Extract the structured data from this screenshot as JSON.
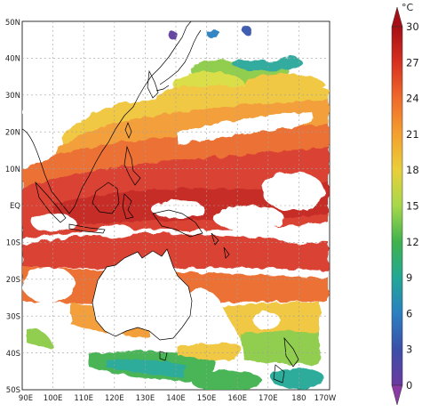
{
  "map": {
    "lat_labels": [
      "50N",
      "40N",
      "30N",
      "20N",
      "10N",
      "EQ",
      "10S",
      "20S",
      "30S",
      "40S",
      "50S"
    ],
    "lon_labels": [
      "90E",
      "100E",
      "110E",
      "120E",
      "130E",
      "140E",
      "150E",
      "160E",
      "170E",
      "180",
      "170W"
    ]
  },
  "colorbar": {
    "unit": "°C",
    "ticks": [
      "30",
      "27",
      "24",
      "21",
      "18",
      "15",
      "12",
      "9",
      "6",
      "3",
      "0"
    ],
    "colors": [
      "#b1151d",
      "#d9372a",
      "#eb6a2c",
      "#f29a30",
      "#f1c63b",
      "#d9de3f",
      "#8ccb44",
      "#3fb24d",
      "#2aa79a",
      "#2a7fc1",
      "#3856ad",
      "#5d3c9d",
      "#8a3aa3"
    ]
  }
}
